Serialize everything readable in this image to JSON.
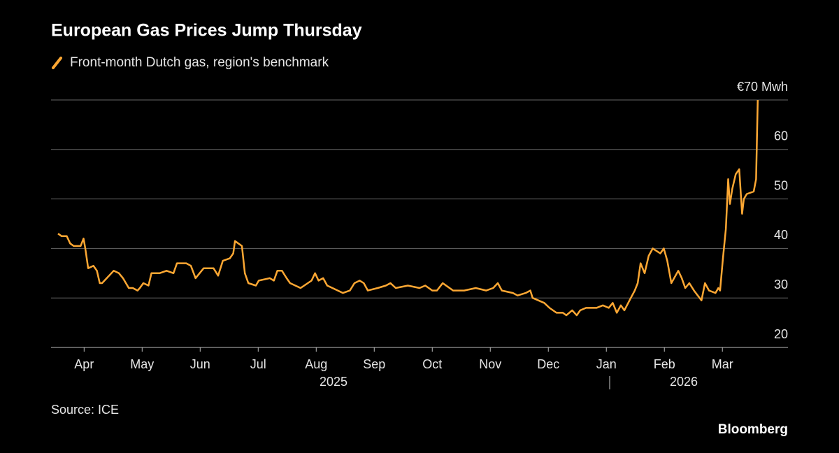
{
  "chart_data": {
    "type": "line",
    "title": "European Gas Prices Jump Thursday",
    "source": "Source: ICE",
    "brand": "Bloomberg",
    "year_labels": [
      "2025",
      "2026"
    ],
    "x": [
      -0.45,
      -0.39,
      -0.3,
      -0.24,
      -0.18,
      -0.06,
      -0.01,
      0.02,
      0.07,
      0.16,
      0.22,
      0.27,
      0.31,
      0.39,
      0.51,
      0.6,
      0.67,
      0.77,
      0.84,
      0.92,
      0.96,
      1.02,
      1.11,
      1.16,
      1.3,
      1.42,
      1.54,
      1.6,
      1.76,
      1.84,
      1.92,
      2.06,
      2.23,
      2.31,
      2.39,
      2.51,
      2.57,
      2.6,
      2.72,
      2.77,
      2.83,
      2.96,
      3.01,
      3.2,
      3.27,
      3.33,
      3.41,
      3.49,
      3.55,
      3.73,
      3.92,
      3.98,
      4.04,
      4.12,
      4.19,
      4.28,
      4.46,
      4.58,
      4.66,
      4.75,
      4.82,
      4.89,
      5.06,
      5.2,
      5.28,
      5.37,
      5.58,
      5.78,
      5.88,
      6.0,
      6.08,
      6.18,
      6.36,
      6.55,
      6.75,
      6.93,
      7.05,
      7.13,
      7.2,
      7.39,
      7.47,
      7.61,
      7.69,
      7.73,
      7.93,
      8.02,
      8.14,
      8.25,
      8.31,
      8.41,
      8.49,
      8.55,
      8.65,
      8.83,
      8.94,
      9.04,
      9.11,
      9.18,
      9.25,
      9.31,
      9.4,
      9.49,
      9.54,
      9.59,
      9.66,
      9.73,
      9.8,
      9.93,
      9.99,
      10.05,
      10.12,
      10.24,
      10.3,
      10.36,
      10.43,
      10.51,
      10.64,
      10.7,
      10.77,
      10.88,
      10.93,
      10.96,
      11.01,
      11.06,
      11.1,
      11.13,
      11.17,
      11.23,
      11.29,
      11.34,
      11.37,
      11.42,
      11.54,
      11.58,
      11.61
    ],
    "series": [
      {
        "name": "Front-month Dutch gas, region's benchmark",
        "color": "#fca733",
        "values": [
          43,
          42.5,
          42.5,
          41,
          40.5,
          40.5,
          42,
          40,
          36,
          36.5,
          35.5,
          33,
          33,
          34,
          35.5,
          35,
          34,
          32,
          32,
          31.5,
          32,
          33,
          32.5,
          35,
          35,
          35.5,
          35,
          37,
          37,
          36.5,
          34,
          36,
          36,
          34.5,
          37.5,
          38,
          39,
          41.5,
          40.5,
          35,
          33,
          32.5,
          33.5,
          34,
          33.5,
          35.5,
          35.5,
          34,
          33,
          32,
          33.5,
          35,
          33.5,
          34,
          32.5,
          32,
          31,
          31.5,
          33,
          33.5,
          33,
          31.5,
          32,
          32.5,
          33,
          32,
          32.5,
          32,
          32.5,
          31.5,
          31.5,
          33,
          31.5,
          31.5,
          32,
          31.5,
          32,
          33,
          31.5,
          31,
          30.5,
          31,
          31.5,
          30,
          29,
          28,
          27,
          27,
          26.5,
          27.5,
          26.5,
          27.5,
          28,
          28,
          28.5,
          28,
          29,
          27,
          28.5,
          27.5,
          29.5,
          31.5,
          33,
          37,
          35,
          38.5,
          40,
          39,
          40,
          37.5,
          33,
          35.5,
          34,
          32,
          33,
          31.5,
          29.5,
          33,
          31.5,
          31,
          32,
          31.5,
          38,
          44,
          54,
          49,
          52,
          55,
          56,
          47,
          50,
          51,
          51.5,
          54,
          70
        ]
      }
    ],
    "xlim": [
      -0.57,
      12.13
    ],
    "xticks": [
      {
        "value": 0,
        "label": "Apr"
      },
      {
        "value": 1,
        "label": "May"
      },
      {
        "value": 2,
        "label": "Jun"
      },
      {
        "value": 3,
        "label": "Jul"
      },
      {
        "value": 4,
        "label": "Aug"
      },
      {
        "value": 5,
        "label": "Sep"
      },
      {
        "value": 6,
        "label": "Oct"
      },
      {
        "value": 7,
        "label": "Nov"
      },
      {
        "value": 8,
        "label": "Dec"
      },
      {
        "value": 9,
        "label": "Jan"
      },
      {
        "value": 10,
        "label": "Feb"
      },
      {
        "value": 11,
        "label": "Mar"
      }
    ],
    "ylim": [
      20,
      70
    ],
    "yticks": [
      20,
      30,
      40,
      50,
      60,
      {
        "value": 70,
        "label": "€70 Mwh"
      }
    ],
    "grid": true
  }
}
